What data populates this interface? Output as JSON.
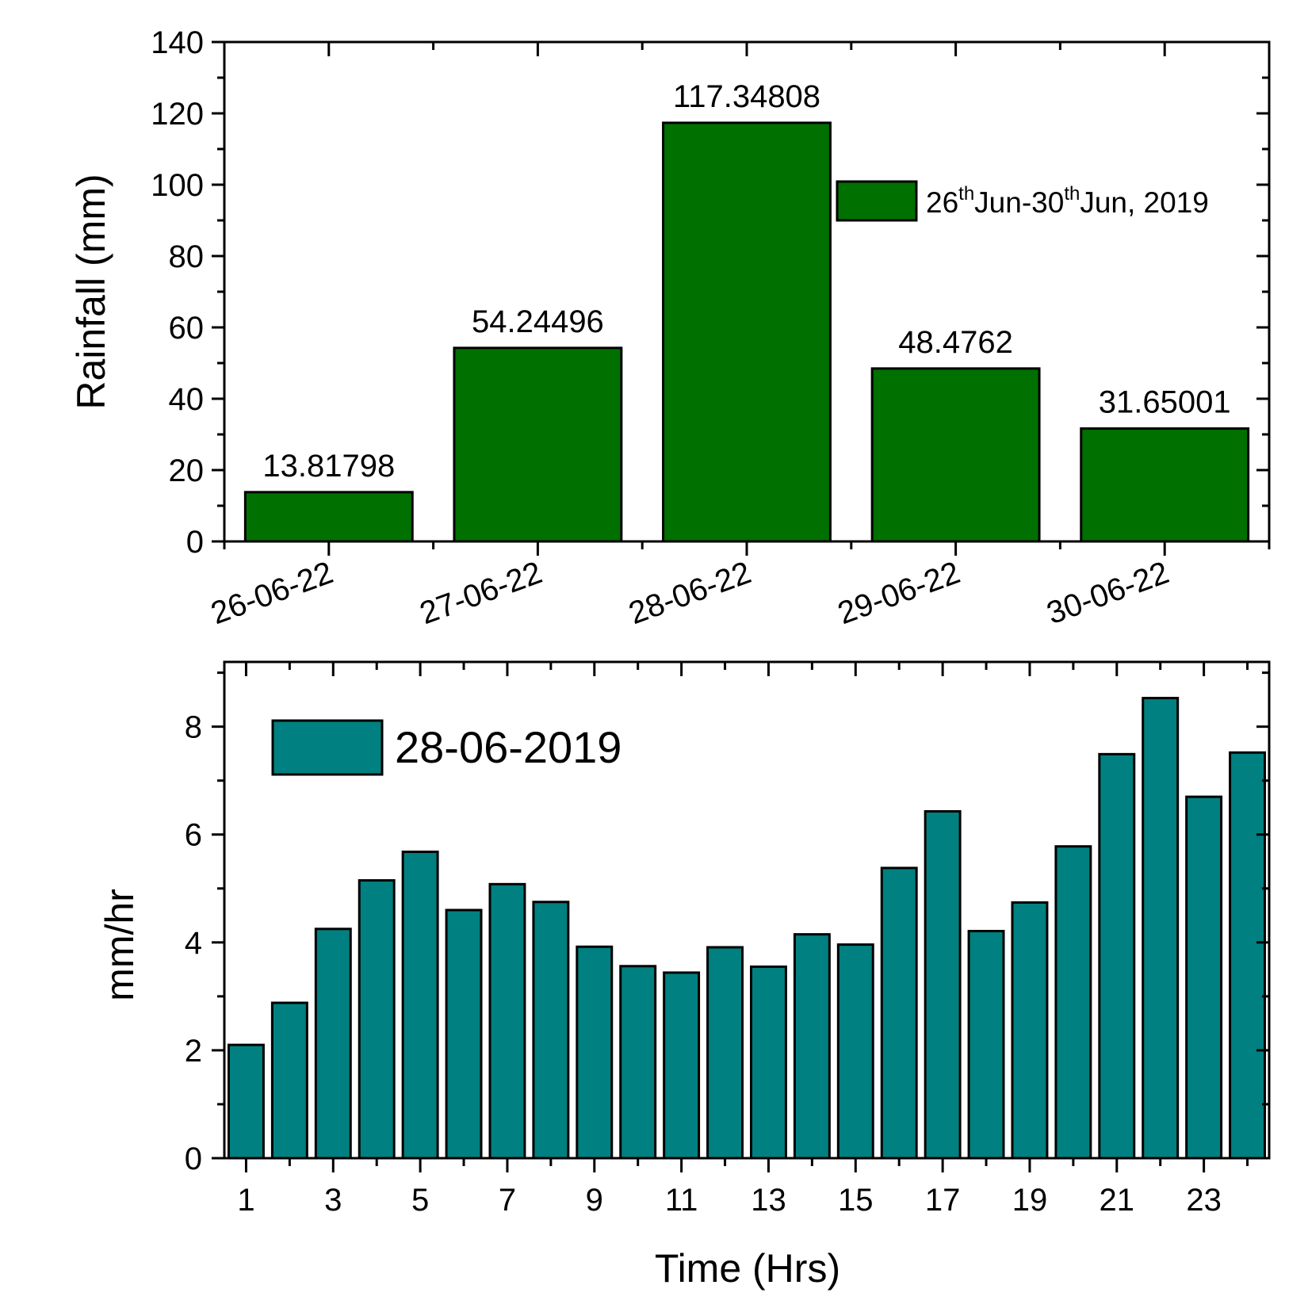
{
  "figure": {
    "charts_count": 2
  },
  "chart_data": [
    {
      "type": "bar",
      "categories": [
        "26-06-22",
        "27-06-22",
        "28-06-22",
        "29-06-22",
        "30-06-22"
      ],
      "values": [
        13.81798,
        54.24496,
        117.34808,
        48.4762,
        31.65001
      ],
      "data_labels": [
        "13.81798",
        "54.24496",
        "117.34808",
        "48.4762",
        "31.65001"
      ],
      "title": "",
      "xlabel": "",
      "ylabel": "Rainfall (mm)",
      "ylim": [
        0,
        140
      ],
      "yticks": [
        "0",
        "20",
        "40",
        "60",
        "80",
        "100",
        "120",
        "140"
      ],
      "x_tick_rotation": "angled",
      "legend": {
        "base1": "26",
        "sup1": "th",
        "mid": "Jun-30",
        "sup2": "th",
        "tail": "Jun, 2019",
        "placement": "top-right"
      },
      "bar_color": "#007000",
      "grid": false
    },
    {
      "type": "bar",
      "categories": [
        "1",
        "2",
        "3",
        "4",
        "5",
        "6",
        "7",
        "8",
        "9",
        "10",
        "11",
        "12",
        "13",
        "14",
        "15",
        "16",
        "17",
        "18",
        "19",
        "20",
        "21",
        "22",
        "23",
        "24"
      ],
      "values": [
        2.1,
        2.88,
        4.25,
        5.15,
        5.68,
        4.6,
        5.08,
        4.75,
        3.92,
        3.56,
        3.44,
        3.91,
        3.55,
        4.15,
        3.96,
        5.38,
        6.43,
        4.21,
        4.74,
        5.78,
        7.49,
        8.53,
        6.7,
        7.52
      ],
      "title": "",
      "xlabel": "Time (Hrs)",
      "ylabel": "mm/hr",
      "ylim": [
        0,
        9.2
      ],
      "yticks": [
        "0",
        "2",
        "4",
        "6",
        "8"
      ],
      "xticks": [
        "1",
        "3",
        "5",
        "7",
        "9",
        "11",
        "13",
        "15",
        "17",
        "19",
        "21",
        "23"
      ],
      "legend": {
        "label": "28-06-2019",
        "placement": "top-left"
      },
      "bar_color": "#008080",
      "grid": false
    }
  ]
}
